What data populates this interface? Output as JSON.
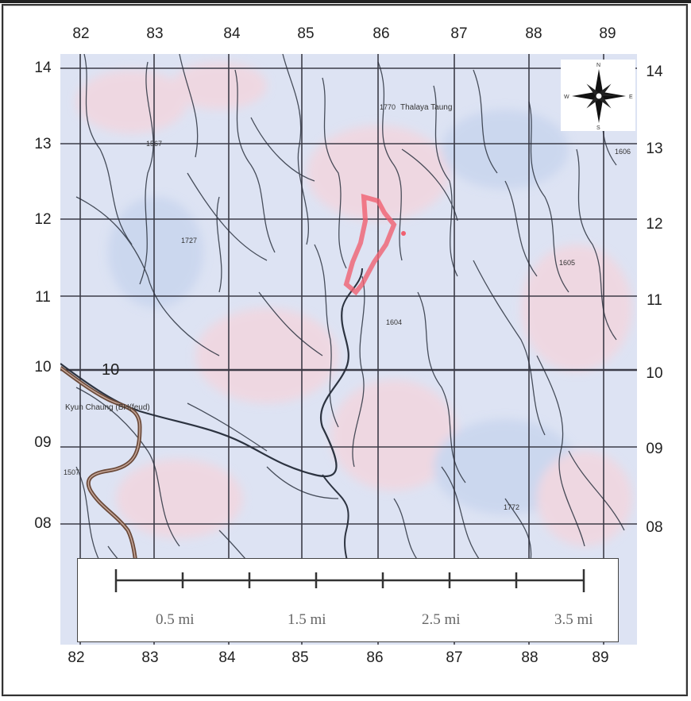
{
  "grid": {
    "top_labels": [
      "82",
      "83",
      "84",
      "85",
      "86",
      "87",
      "88",
      "89"
    ],
    "bottom_labels": [
      "82",
      "83",
      "84",
      "85",
      "86",
      "87",
      "88",
      "89"
    ],
    "left_labels": [
      "14",
      "13",
      "12",
      "11",
      "10",
      "09",
      "08"
    ],
    "right_labels": [
      "14",
      "13",
      "12",
      "11",
      "10",
      "09",
      "08"
    ]
  },
  "compass": {
    "n": "N",
    "s": "S",
    "e": "E",
    "w": "W"
  },
  "map": {
    "labels": {
      "thalaya_taung": "Thalaya Taung",
      "kyun_chaung": "Kyun Chaung (BH(feud)",
      "inner_ten": "10",
      "spot_1770": "1770",
      "spot_1567": "1567",
      "spot_1727": "1727",
      "spot_1606": "1606",
      "spot_1604": "1604",
      "spot_1605": "1605",
      "spot_1772": "1772",
      "spot_1507": "1507"
    },
    "colors": {
      "river": "#2c3340",
      "grid": "#2a2a36",
      "boundary": "#6b4a3a",
      "site": "#f06070",
      "terrain_base": "#dde3f3",
      "terrain_pink": "#f2d6df",
      "terrain_blue": "#c9d5ee"
    }
  },
  "scale_bar": {
    "labels": [
      "0.5 mi",
      "1.5 mi",
      "2.5 mi",
      "3.5 mi"
    ]
  }
}
